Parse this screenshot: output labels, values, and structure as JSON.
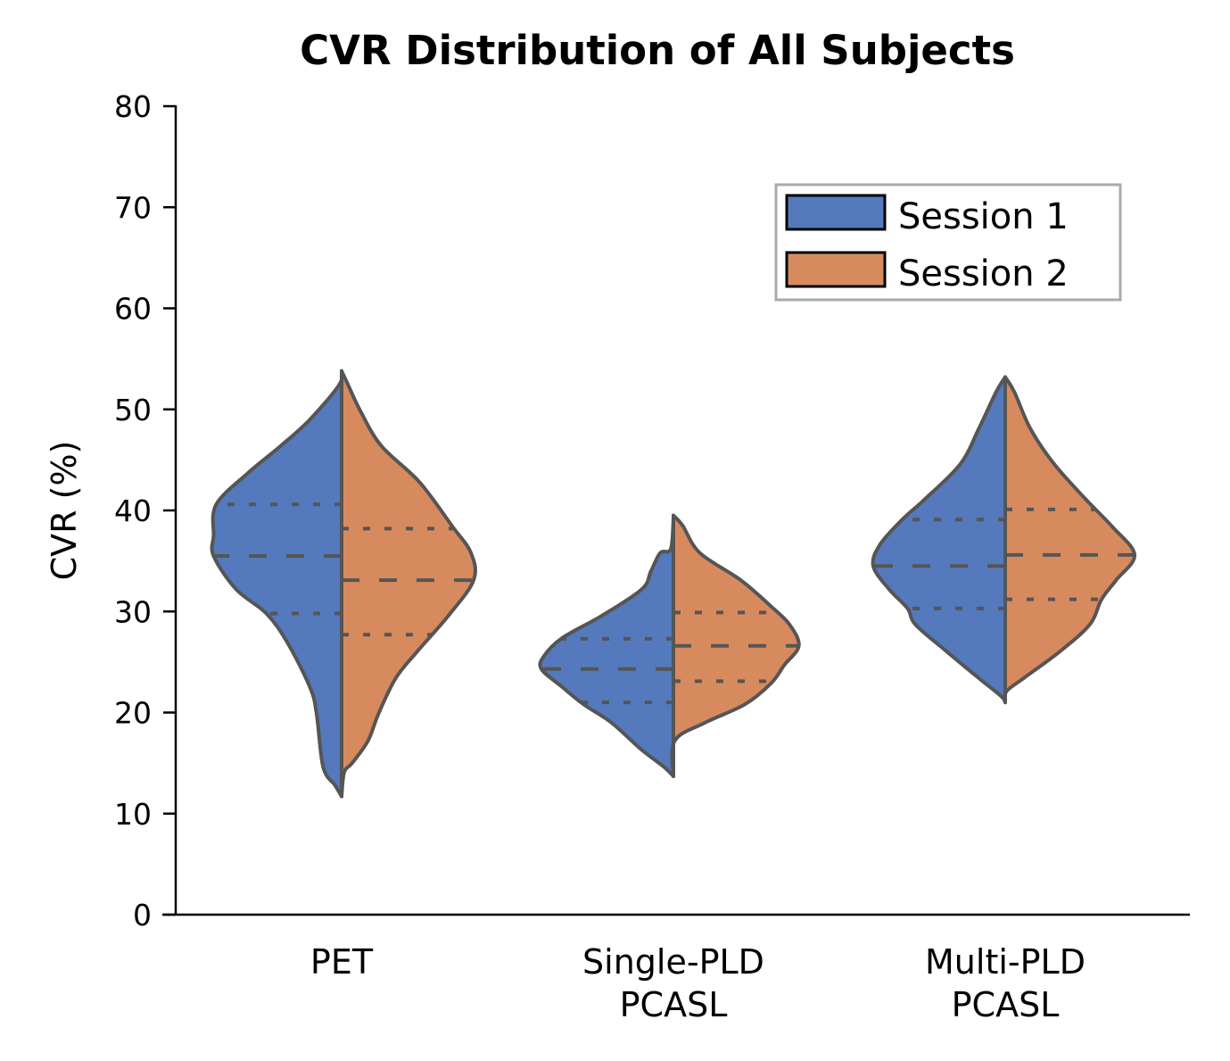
{
  "chart_data": {
    "type": "violin",
    "title": "CVR Distribution of All Subjects",
    "xlabel": "",
    "ylabel": "CVR (%)",
    "ylim": [
      0,
      80
    ],
    "yticks": [
      0,
      10,
      20,
      30,
      40,
      50,
      60,
      70,
      80
    ],
    "grid": false,
    "split": true,
    "inner": "quartile",
    "categories": [
      "PET",
      "Single-PLD\nPCASL",
      "Multi-PLD\nPCASL"
    ],
    "category_lines": [
      [
        "PET"
      ],
      [
        "Single-PLD",
        "PCASL"
      ],
      [
        "Multi-PLD",
        "PCASL"
      ]
    ],
    "legend": {
      "placement": "top-right",
      "entries": [
        {
          "label": "Session 1",
          "color": "#5479BC"
        },
        {
          "label": "Session 2",
          "color": "#D88A5F"
        }
      ]
    },
    "outline_color": "#555555",
    "series": [
      {
        "name": "Session 1",
        "color": "#5479BC",
        "side": "left",
        "groups": [
          {
            "category": "PET",
            "min": 11.7,
            "max": 53.8,
            "q1": 29.8,
            "median": 35.5,
            "q3": 40.6,
            "density": [
              [
                53.8,
                0
              ],
              [
                52.4,
                0.02
              ],
              [
                49.0,
                0.24
              ],
              [
                46.4,
                0.46
              ],
              [
                43.7,
                0.71
              ],
              [
                40.6,
                0.95
              ],
              [
                37.5,
                0.97
              ],
              [
                35.5,
                0.97
              ],
              [
                32.2,
                0.8
              ],
              [
                29.8,
                0.57
              ],
              [
                26.9,
                0.41
              ],
              [
                22.5,
                0.24
              ],
              [
                19.9,
                0.19
              ],
              [
                14.6,
                0.14
              ],
              [
                12.8,
                0.05
              ],
              [
                11.7,
                0
              ]
            ]
          },
          {
            "category": "Single-PLD PCASL",
            "min": 13.7,
            "max": 39.3,
            "q1": 21.0,
            "median": 24.3,
            "q3": 27.3,
            "density": [
              [
                39.3,
                0
              ],
              [
                36.2,
                0.02
              ],
              [
                35.8,
                0.1
              ],
              [
                34.0,
                0.17
              ],
              [
                32.2,
                0.24
              ],
              [
                29.6,
                0.54
              ],
              [
                27.4,
                0.84
              ],
              [
                25.6,
                0.98
              ],
              [
                24.3,
                1.0
              ],
              [
                22.5,
                0.84
              ],
              [
                20.8,
                0.68
              ],
              [
                19.0,
                0.47
              ],
              [
                16.3,
                0.24
              ],
              [
                14.6,
                0.07
              ],
              [
                13.7,
                0
              ]
            ]
          },
          {
            "category": "Multi-PLD PCASL",
            "min": 21.0,
            "max": 53.2,
            "q1": 30.3,
            "median": 34.5,
            "q3": 39.1,
            "density": [
              [
                53.2,
                0
              ],
              [
                51.7,
                0.07
              ],
              [
                48.1,
                0.2
              ],
              [
                44.6,
                0.34
              ],
              [
                41.1,
                0.61
              ],
              [
                39.1,
                0.78
              ],
              [
                36.6,
                0.95
              ],
              [
                34.5,
                1.0
              ],
              [
                32.2,
                0.88
              ],
              [
                30.3,
                0.74
              ],
              [
                28.7,
                0.68
              ],
              [
                26.0,
                0.44
              ],
              [
                23.4,
                0.2
              ],
              [
                21.6,
                0.03
              ],
              [
                21.0,
                0
              ]
            ]
          }
        ]
      },
      {
        "name": "Session 2",
        "color": "#D88A5F",
        "side": "right",
        "groups": [
          {
            "category": "PET",
            "min": 11.7,
            "max": 53.8,
            "q1": 27.7,
            "median": 33.1,
            "q3": 38.2,
            "density": [
              [
                53.8,
                0
              ],
              [
                52.4,
                0.05
              ],
              [
                49.9,
                0.14
              ],
              [
                46.4,
                0.3
              ],
              [
                42.8,
                0.59
              ],
              [
                38.4,
                0.84
              ],
              [
                35.8,
                0.98
              ],
              [
                33.1,
                1.0
              ],
              [
                29.6,
                0.81
              ],
              [
                26.0,
                0.57
              ],
              [
                23.4,
                0.41
              ],
              [
                19.9,
                0.28
              ],
              [
                17.2,
                0.2
              ],
              [
                15.0,
                0.08
              ],
              [
                14.1,
                0.02
              ],
              [
                11.7,
                0
              ]
            ]
          },
          {
            "category": "Single-PLD PCASL",
            "min": 13.7,
            "max": 39.5,
            "q1": 23.1,
            "median": 26.6,
            "q3": 29.9,
            "density": [
              [
                39.5,
                0
              ],
              [
                38.5,
                0.07
              ],
              [
                35.8,
                0.2
              ],
              [
                33.1,
                0.51
              ],
              [
                30.5,
                0.74
              ],
              [
                28.7,
                0.88
              ],
              [
                26.6,
                0.95
              ],
              [
                24.7,
                0.84
              ],
              [
                22.9,
                0.74
              ],
              [
                20.8,
                0.54
              ],
              [
                19.0,
                0.24
              ],
              [
                17.2,
                0.01
              ],
              [
                13.7,
                0
              ]
            ]
          },
          {
            "category": "Multi-PLD PCASL",
            "min": 21.0,
            "max": 53.2,
            "q1": 31.2,
            "median": 35.6,
            "q3": 40.1,
            "density": [
              [
                53.2,
                0
              ],
              [
                51.7,
                0.07
              ],
              [
                48.1,
                0.19
              ],
              [
                44.6,
                0.37
              ],
              [
                41.1,
                0.61
              ],
              [
                38.4,
                0.81
              ],
              [
                35.6,
                0.98
              ],
              [
                33.1,
                0.84
              ],
              [
                31.2,
                0.73
              ],
              [
                28.7,
                0.64
              ],
              [
                26.0,
                0.41
              ],
              [
                23.4,
                0.14
              ],
              [
                22.1,
                0.01
              ],
              [
                21.0,
                0
              ]
            ]
          }
        ]
      }
    ]
  }
}
